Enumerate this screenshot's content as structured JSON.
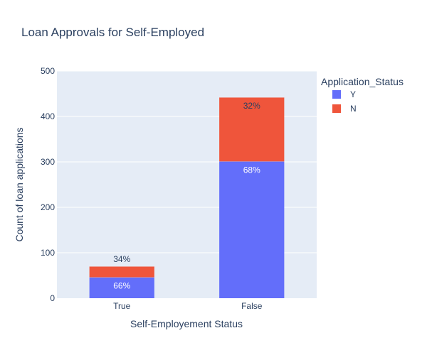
{
  "chart_data": {
    "type": "bar",
    "stacked": true,
    "title": "Loan Approvals for Self-Employed",
    "xlabel": "Self-Employement Status",
    "ylabel": "Count of loan applications",
    "categories": [
      "True",
      "False"
    ],
    "ylim": [
      0,
      500
    ],
    "yticks": [
      0,
      100,
      200,
      300,
      400,
      500
    ],
    "grid": true,
    "legend": {
      "title": "Application_Status",
      "placement": "top-right"
    },
    "series": [
      {
        "name": "Y",
        "color": "#636efa",
        "label_color": "#ffffff",
        "values": [
          46,
          301
        ],
        "labels": [
          "66%",
          "68%"
        ]
      },
      {
        "name": "N",
        "color": "#ef553b",
        "label_color": "#2a3f5f",
        "values": [
          24,
          141
        ],
        "labels": [
          "34%",
          "32%"
        ]
      }
    ],
    "plot_background": "#e5ecf6"
  }
}
